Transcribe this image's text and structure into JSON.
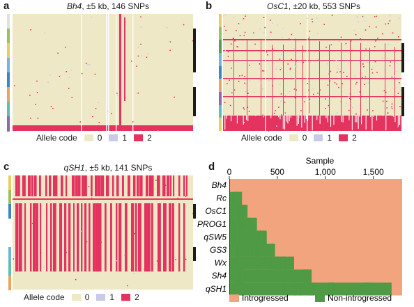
{
  "panels": [
    {
      "letter": "a",
      "gene": "Bh4",
      "window": ", ±5 kb, 146 SNPs",
      "legend": {
        "label": "Allele code",
        "codes": [
          "0",
          "1",
          "2"
        ]
      }
    },
    {
      "letter": "b",
      "gene": "OsC1",
      "window": ", ±20 kb, 553 SNPs",
      "legend": {
        "label": "Allele code",
        "codes": [
          "0",
          "1",
          "2"
        ]
      }
    },
    {
      "letter": "c",
      "gene": "qSH1",
      "window": ", ±5 kb, 141 SNPs",
      "legend": {
        "label": "Allele code",
        "codes": [
          "0",
          "1",
          "2"
        ]
      }
    }
  ],
  "panel_d": {
    "letter": "d",
    "xlabel": "Sample",
    "legend": [
      "Introgressed",
      "Non-introgressed"
    ]
  },
  "colors": {
    "code0": "#efe8c7",
    "code1": "#c9c9e8",
    "code2": "#e5335f",
    "introgressed": "#f2a47f",
    "non_introgressed": "#4e9a45"
  },
  "chart_data": [
    {
      "type": "heatmap",
      "panel": "a",
      "snps": 146,
      "values": [
        0,
        1,
        2
      ]
    },
    {
      "type": "heatmap",
      "panel": "b",
      "snps": 553,
      "values": [
        0,
        1,
        2
      ]
    },
    {
      "type": "heatmap",
      "panel": "c",
      "snps": 141,
      "values": [
        0,
        1,
        2
      ]
    },
    {
      "type": "heatmap",
      "panel": "d",
      "xlabel": "Sample",
      "xlim": [
        0,
        1800
      ],
      "xticks": [
        0,
        500,
        1000,
        1500
      ],
      "xtick_labels": [
        "0",
        "500",
        "1,000",
        "1,500"
      ],
      "genes": [
        "Bh4",
        "Rc",
        "OsC1",
        "PROG1",
        "qSW5",
        "GS3",
        "Wx",
        "Sh4",
        "qSH1"
      ],
      "states": [
        "Introgressed",
        "Non-introgressed"
      ],
      "non_introgressed_start": [
        1,
        100,
        190,
        270,
        390,
        470,
        630,
        820,
        1690
      ]
    }
  ]
}
